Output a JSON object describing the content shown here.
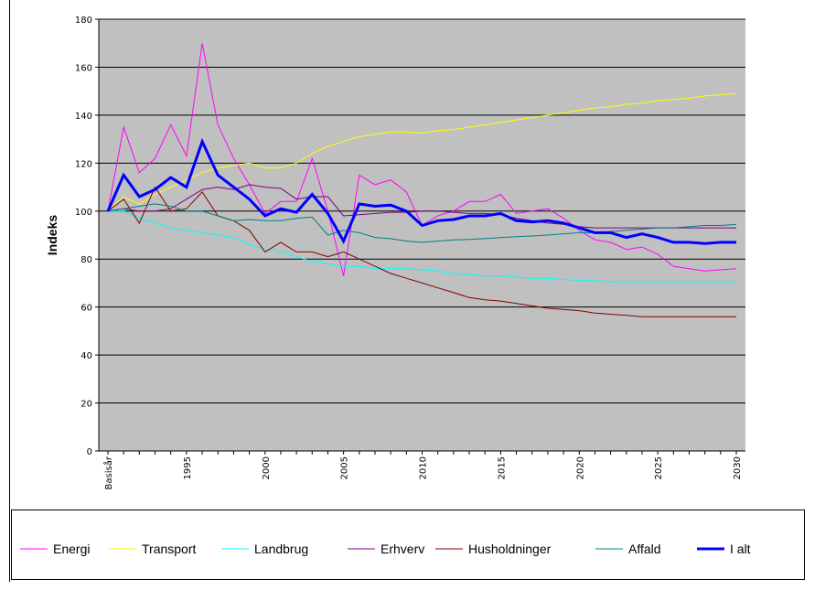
{
  "chart_data": {
    "type": "line",
    "y_label": "Indeks",
    "categories": [
      "Basisår",
      null,
      null,
      null,
      null,
      "1995",
      null,
      null,
      null,
      null,
      "2000",
      null,
      null,
      null,
      null,
      "2005",
      null,
      null,
      null,
      null,
      "2010",
      null,
      null,
      null,
      null,
      "2015",
      null,
      null,
      null,
      null,
      "2020",
      null,
      null,
      null,
      null,
      "2025",
      null,
      null,
      null,
      null,
      "2030"
    ],
    "ylim": [
      0,
      180
    ],
    "yticks": [
      0,
      20,
      40,
      60,
      80,
      100,
      120,
      140,
      160,
      180
    ],
    "grid": true,
    "legend": "bottom",
    "series": [
      {
        "name": "Energi",
        "color": "#ff00ff",
        "line_width": 1,
        "values": [
          100,
          135,
          116,
          122,
          136,
          123,
          170,
          136,
          122,
          111,
          99,
          104,
          104,
          122,
          100,
          73,
          115,
          111,
          113,
          108,
          94,
          98,
          100,
          104,
          104,
          107,
          99,
          100,
          101,
          97,
          92,
          88,
          87,
          84,
          85,
          82,
          77,
          76,
          75,
          75.5,
          76
        ]
      },
      {
        "name": "Transport",
        "color": "#ffff00",
        "line_width": 1,
        "values": [
          100,
          106,
          103,
          107,
          110,
          113,
          116,
          118,
          119,
          120,
          118,
          118,
          120,
          124,
          127,
          129,
          131,
          132,
          133,
          133,
          132.5,
          133.5,
          134,
          135,
          136,
          137,
          138,
          139,
          140,
          141,
          142,
          143,
          143.5,
          144.5,
          145,
          146,
          146.5,
          147,
          148,
          148.5,
          149
        ]
      },
      {
        "name": "Landbrug",
        "color": "#00ffff",
        "line_width": 1,
        "values": [
          100,
          100,
          97,
          95,
          93,
          92,
          91,
          90,
          89,
          86,
          84,
          83,
          81,
          79,
          78,
          77,
          77,
          76,
          76,
          76,
          75.5,
          75,
          74,
          73.5,
          73,
          73,
          72.5,
          72,
          72,
          71.5,
          71,
          71,
          70.5,
          70.5,
          70.5,
          70.5,
          70.5,
          70.5,
          70.5,
          70.5,
          70.5
        ]
      },
      {
        "name": "Erhverv",
        "color": "#800080",
        "line_width": 1,
        "values": [
          100,
          101,
          100,
          100,
          101,
          105,
          109,
          110,
          109,
          111,
          110,
          109.5,
          105,
          106,
          106,
          98,
          98.5,
          99,
          99.5,
          99.5,
          100,
          100,
          99.5,
          99,
          99,
          98.5,
          97,
          96,
          95,
          94.5,
          93.5,
          93,
          93,
          93,
          93,
          93,
          93,
          93,
          93,
          93,
          93
        ]
      },
      {
        "name": "Husholdninger",
        "color": "#800000",
        "line_width": 1,
        "values": [
          100,
          105,
          95,
          110,
          100,
          101,
          108,
          98,
          96,
          92,
          83,
          87,
          83,
          83,
          81,
          83,
          80,
          77,
          74,
          72,
          70,
          68,
          66,
          64,
          63,
          62.5,
          61.5,
          60.5,
          59.5,
          59,
          58.5,
          57.5,
          57,
          56.5,
          56,
          56,
          56,
          56,
          56,
          56,
          56
        ]
      },
      {
        "name": "Affald",
        "color": "#008080",
        "line_width": 1,
        "values": [
          100,
          101,
          102,
          103,
          102,
          100,
          100,
          98,
          96,
          96.5,
          96,
          96,
          97,
          97.5,
          90,
          92,
          91,
          89,
          88.5,
          87.5,
          87,
          87.5,
          88,
          88.2,
          88.5,
          89,
          89.3,
          89.6,
          90,
          90.5,
          91,
          91,
          91.5,
          92,
          92.5,
          93,
          93,
          93.5,
          94,
          94,
          94.5
        ]
      },
      {
        "name": "I alt",
        "color": "#0000ff",
        "line_width": 3,
        "values": [
          100,
          115,
          106,
          109,
          114,
          110,
          129,
          115,
          110,
          105,
          98,
          101,
          99.5,
          107,
          99,
          87.5,
          103,
          102,
          102.5,
          100,
          94,
          96,
          96.5,
          98,
          98,
          99,
          96,
          95.5,
          96,
          95,
          93,
          91,
          91,
          89,
          90.5,
          89,
          87,
          87,
          86.5,
          87,
          87
        ]
      }
    ]
  }
}
